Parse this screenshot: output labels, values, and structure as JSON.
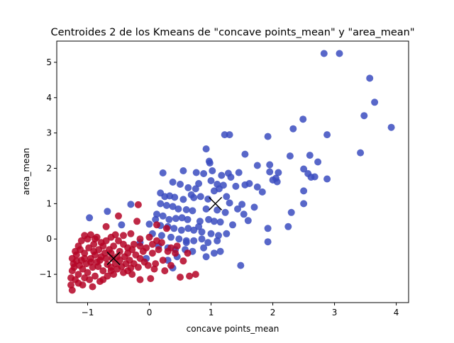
{
  "chart_data": {
    "type": "scatter",
    "title": "Centroides 2 de los Kmeans de \"concave points_mean\"  y \"area_mean\"",
    "xlabel": "concave points_mean",
    "ylabel": "area_mean",
    "xlim": [
      -1.5,
      4.2
    ],
    "ylim": [
      -1.8,
      5.6
    ],
    "xticks": [
      -1,
      0,
      1,
      2,
      3,
      4
    ],
    "xtick_labels": [
      "−1",
      "0",
      "1",
      "2",
      "3",
      "4"
    ],
    "yticks": [
      -1,
      0,
      1,
      2,
      3,
      4,
      5
    ],
    "ytick_labels": [
      "−1",
      "0",
      "1",
      "2",
      "3",
      "4",
      "5"
    ],
    "grid": false,
    "colors": {
      "cluster_blue": "#3b4cc0",
      "cluster_red": "#b40426",
      "centroid": "#000000"
    },
    "series": [
      {
        "color": "#3b4cc0",
        "points": [
          [
            2.83,
            5.25
          ],
          [
            3.08,
            5.25
          ],
          [
            3.57,
            4.55
          ],
          [
            3.65,
            3.87
          ],
          [
            3.48,
            3.49
          ],
          [
            3.92,
            3.16
          ],
          [
            2.49,
            3.39
          ],
          [
            2.33,
            3.12
          ],
          [
            2.88,
            2.95
          ],
          [
            1.22,
            2.95
          ],
          [
            1.3,
            2.95
          ],
          [
            1.92,
            2.9
          ],
          [
            0.92,
            2.55
          ],
          [
            1.55,
            2.4
          ],
          [
            2.6,
            2.37
          ],
          [
            2.28,
            2.35
          ],
          [
            3.42,
            2.44
          ],
          [
            2.73,
            2.18
          ],
          [
            0.97,
            2.2
          ],
          [
            0.98,
            2.15
          ],
          [
            1.95,
            2.1
          ],
          [
            1.75,
            2.08
          ],
          [
            0.22,
            1.87
          ],
          [
            0.55,
            1.93
          ],
          [
            1.02,
            1.93
          ],
          [
            1.45,
            1.88
          ],
          [
            1.95,
            1.9
          ],
          [
            2.09,
            1.88
          ],
          [
            2.5,
            1.98
          ],
          [
            2.57,
            1.85
          ],
          [
            2.62,
            1.75
          ],
          [
            2.68,
            1.76
          ],
          [
            0.76,
            1.88
          ],
          [
            0.88,
            1.85
          ],
          [
            1.17,
            1.8
          ],
          [
            1.28,
            1.86
          ],
          [
            1.32,
            1.75
          ],
          [
            1.62,
            1.57
          ],
          [
            1.75,
            1.47
          ],
          [
            2.05,
            1.72
          ],
          [
            2.0,
            1.67
          ],
          [
            2.07,
            1.62
          ],
          [
            2.5,
            1.36
          ],
          [
            2.88,
            1.7
          ],
          [
            0.38,
            1.61
          ],
          [
            0.5,
            1.55
          ],
          [
            0.63,
            1.45
          ],
          [
            0.75,
            1.42
          ],
          [
            0.8,
            1.57
          ],
          [
            1.0,
            1.65
          ],
          [
            1.1,
            1.55
          ],
          [
            1.2,
            1.52
          ],
          [
            1.4,
            1.49
          ],
          [
            1.55,
            1.53
          ],
          [
            1.83,
            1.33
          ],
          [
            0.18,
            1.3
          ],
          [
            0.25,
            1.2
          ],
          [
            0.33,
            1.22
          ],
          [
            0.41,
            1.18
          ],
          [
            0.55,
            1.12
          ],
          [
            0.68,
            1.25
          ],
          [
            0.72,
            1.17
          ],
          [
            0.83,
            1.2
          ],
          [
            0.95,
            1.13
          ],
          [
            1.05,
            1.36
          ],
          [
            1.13,
            1.42
          ],
          [
            1.25,
            1.2
          ],
          [
            1.3,
            1.02
          ],
          [
            1.5,
            0.98
          ],
          [
            1.7,
            0.9
          ],
          [
            2.3,
            0.75
          ],
          [
            2.5,
            1.0
          ],
          [
            0.18,
            1.0
          ],
          [
            0.28,
            0.95
          ],
          [
            0.38,
            0.92
          ],
          [
            0.47,
            0.85
          ],
          [
            0.6,
            0.83
          ],
          [
            0.7,
            0.8
          ],
          [
            0.92,
            0.85
          ],
          [
            1.1,
            0.82
          ],
          [
            1.23,
            0.75
          ],
          [
            1.43,
            0.85
          ],
          [
            1.53,
            0.7
          ],
          [
            -0.68,
            0.78
          ],
          [
            -0.3,
            0.98
          ],
          [
            0.12,
            0.7
          ],
          [
            0.22,
            0.65
          ],
          [
            0.32,
            0.55
          ],
          [
            0.43,
            0.58
          ],
          [
            0.53,
            0.6
          ],
          [
            0.62,
            0.55
          ],
          [
            0.82,
            0.5
          ],
          [
            0.96,
            0.55
          ],
          [
            1.05,
            0.5
          ],
          [
            1.15,
            0.48
          ],
          [
            1.35,
            0.4
          ],
          [
            1.6,
            0.52
          ],
          [
            1.92,
            0.3
          ],
          [
            2.25,
            0.35
          ],
          [
            -0.97,
            0.6
          ],
          [
            -0.45,
            0.4
          ],
          [
            0.0,
            0.42
          ],
          [
            0.18,
            0.38
          ],
          [
            0.3,
            0.35
          ],
          [
            0.4,
            0.3
          ],
          [
            0.52,
            0.25
          ],
          [
            0.63,
            0.3
          ],
          [
            0.72,
            0.25
          ],
          [
            0.85,
            0.2
          ],
          [
            1.0,
            0.15
          ],
          [
            1.12,
            0.1
          ],
          [
            1.25,
            0.15
          ],
          [
            0.05,
            0.15
          ],
          [
            0.2,
            0.1
          ],
          [
            0.35,
            0.05
          ],
          [
            0.48,
            0.0
          ],
          [
            0.6,
            -0.05
          ],
          [
            0.72,
            -0.05
          ],
          [
            0.85,
            0.0
          ],
          [
            0.95,
            -0.1
          ],
          [
            1.1,
            -0.05
          ],
          [
            0.15,
            -0.2
          ],
          [
            0.3,
            -0.25
          ],
          [
            0.42,
            -0.3
          ],
          [
            0.58,
            -0.3
          ],
          [
            0.7,
            -0.35
          ],
          [
            0.88,
            -0.25
          ],
          [
            1.05,
            -0.4
          ],
          [
            1.15,
            -0.35
          ],
          [
            1.92,
            -0.08
          ],
          [
            -0.05,
            -0.55
          ],
          [
            0.3,
            -0.6
          ],
          [
            0.45,
            -0.5
          ],
          [
            0.92,
            -0.5
          ],
          [
            0.38,
            -0.82
          ],
          [
            1.48,
            -0.75
          ],
          [
            0.6,
            -0.1
          ],
          [
            0.8,
            0.35
          ],
          [
            0.1,
            0.55
          ],
          [
            -0.15,
            -0.1
          ]
        ]
      },
      {
        "color": "#b40426",
        "points": [
          [
            -0.5,
            0.65
          ],
          [
            -0.18,
            0.97
          ],
          [
            -0.2,
            0.5
          ],
          [
            0.12,
            0.4
          ],
          [
            0.28,
            0.3
          ],
          [
            -0.7,
            0.35
          ],
          [
            -0.55,
            0.12
          ],
          [
            -0.42,
            0.1
          ],
          [
            -0.3,
            0.15
          ],
          [
            -0.15,
            0.0
          ],
          [
            0.0,
            0.05
          ],
          [
            0.12,
            -0.05
          ],
          [
            0.2,
            -0.1
          ],
          [
            0.35,
            -0.25
          ],
          [
            0.42,
            -0.4
          ],
          [
            0.55,
            -0.62
          ],
          [
            0.75,
            -1.0
          ],
          [
            0.5,
            -1.08
          ],
          [
            0.25,
            -0.9
          ],
          [
            0.1,
            -0.7
          ],
          [
            0.22,
            -0.6
          ],
          [
            0.02,
            -1.12
          ],
          [
            -0.15,
            -1.15
          ],
          [
            -0.28,
            -1.0
          ],
          [
            -0.35,
            -0.9
          ],
          [
            -0.52,
            -0.85
          ],
          [
            -0.68,
            -1.05
          ],
          [
            -0.8,
            -1.2
          ],
          [
            -0.92,
            -1.35
          ],
          [
            -1.05,
            -1.1
          ],
          [
            -1.15,
            -1.25
          ],
          [
            -1.25,
            -1.45
          ],
          [
            -1.27,
            -1.3
          ],
          [
            -1.27,
            -1.1
          ],
          [
            -1.25,
            -0.9
          ],
          [
            -1.23,
            -0.7
          ],
          [
            -1.25,
            -0.55
          ],
          [
            -1.2,
            -0.35
          ],
          [
            -1.15,
            -0.2
          ],
          [
            -1.1,
            -0.05
          ],
          [
            -1.05,
            0.1
          ],
          [
            -0.95,
            0.12
          ],
          [
            -0.85,
            0.05
          ],
          [
            -0.78,
            -0.1
          ],
          [
            -0.7,
            -0.05
          ],
          [
            -0.62,
            0.05
          ],
          [
            -0.5,
            -0.05
          ],
          [
            -0.42,
            -0.15
          ],
          [
            -0.35,
            -0.25
          ],
          [
            -0.28,
            -0.3
          ],
          [
            -0.22,
            -0.45
          ],
          [
            -0.15,
            -0.55
          ],
          [
            -0.08,
            -0.65
          ],
          [
            -0.02,
            -0.75
          ],
          [
            0.08,
            -0.85
          ],
          [
            -1.15,
            -1.0
          ],
          [
            -1.08,
            -0.85
          ],
          [
            -1.02,
            -0.7
          ],
          [
            -0.95,
            -0.55
          ],
          [
            -0.88,
            -0.45
          ],
          [
            -0.82,
            -0.3
          ],
          [
            -0.75,
            -0.2
          ],
          [
            -1.1,
            -0.6
          ],
          [
            -1.0,
            -0.95
          ],
          [
            -0.92,
            -0.8
          ],
          [
            -0.85,
            -0.65
          ],
          [
            -0.78,
            -0.5
          ],
          [
            -0.72,
            -0.4
          ],
          [
            -0.65,
            -0.3
          ],
          [
            -0.58,
            -0.2
          ],
          [
            -0.48,
            -0.35
          ],
          [
            -0.4,
            -0.5
          ],
          [
            -0.32,
            -0.6
          ],
          [
            -0.25,
            -0.7
          ],
          [
            -0.18,
            -0.8
          ],
          [
            -1.18,
            -0.45
          ],
          [
            -1.12,
            -0.3
          ],
          [
            -1.05,
            -0.4
          ],
          [
            -0.98,
            -0.25
          ],
          [
            -0.9,
            -0.15
          ],
          [
            -0.83,
            -0.78
          ],
          [
            -0.75,
            -0.9
          ],
          [
            -0.68,
            -0.72
          ],
          [
            -0.6,
            -0.55
          ],
          [
            -0.55,
            -0.7
          ],
          [
            -0.48,
            -0.6
          ],
          [
            -0.45,
            -0.78
          ],
          [
            -0.38,
            -0.7
          ],
          [
            -0.3,
            -0.82
          ],
          [
            -0.62,
            -0.9
          ],
          [
            -0.88,
            -1.05
          ],
          [
            -0.97,
            -1.15
          ],
          [
            -1.08,
            -1.3
          ],
          [
            -1.2,
            -1.15
          ],
          [
            -0.75,
            -1.15
          ],
          [
            -0.58,
            -1.0
          ],
          [
            -0.42,
            -0.95
          ],
          [
            0.3,
            -0.35
          ],
          [
            0.45,
            -0.2
          ],
          [
            0.62,
            -0.4
          ],
          [
            0.05,
            -0.4
          ],
          [
            -0.05,
            -0.25
          ],
          [
            -0.1,
            -0.35
          ],
          [
            -1.22,
            -0.8
          ],
          [
            -1.18,
            -0.62
          ],
          [
            -1.13,
            -0.75
          ],
          [
            -1.05,
            -0.55
          ],
          [
            -0.95,
            -0.65
          ],
          [
            -0.9,
            -0.35
          ],
          [
            -0.8,
            -0.6
          ],
          [
            -0.7,
            -0.55
          ],
          [
            -0.62,
            -0.8
          ],
          [
            -0.52,
            -0.5
          ],
          [
            -0.35,
            -0.4
          ],
          [
            -0.25,
            -0.15
          ],
          [
            -0.15,
            -0.2
          ],
          [
            0.05,
            -0.15
          ],
          [
            0.15,
            -0.3
          ],
          [
            -1.0,
            0.0
          ],
          [
            -0.88,
            0.0
          ],
          [
            -0.62,
            -0.4
          ],
          [
            0.65,
            -1.05
          ],
          [
            0.35,
            -0.75
          ]
        ]
      }
    ],
    "centroids": [
      {
        "x": -0.58,
        "y": -0.55
      },
      {
        "x": 1.07,
        "y": 1.0
      }
    ]
  }
}
